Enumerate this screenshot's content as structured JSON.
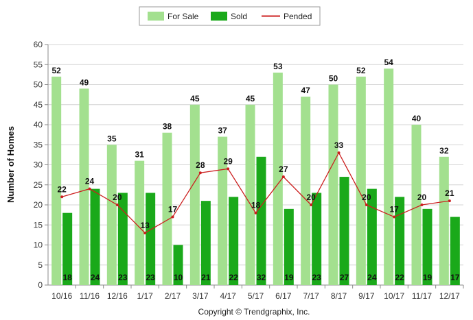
{
  "chart_data": {
    "type": "bar",
    "ylabel": "Number of Homes",
    "credit": "Copyright © Trendgraphix, Inc.",
    "ylim": [
      0,
      60
    ],
    "yticks": [
      0,
      5,
      10,
      15,
      20,
      25,
      30,
      35,
      40,
      45,
      50,
      55,
      60
    ],
    "grid": true,
    "legend_position": "top-center",
    "categories": [
      "10/16",
      "11/16",
      "12/16",
      "1/17",
      "2/17",
      "3/17",
      "4/17",
      "5/17",
      "6/17",
      "7/17",
      "8/17",
      "9/17",
      "10/17",
      "11/17",
      "12/17"
    ],
    "series": [
      {
        "name": "For Sale",
        "kind": "bar",
        "color": "#a3e08f",
        "values": [
          52,
          49,
          35,
          31,
          38,
          45,
          37,
          45,
          53,
          47,
          50,
          52,
          54,
          40,
          32
        ]
      },
      {
        "name": "Sold",
        "kind": "bar",
        "color": "#1aa91a",
        "values": [
          18,
          24,
          23,
          23,
          10,
          21,
          22,
          32,
          19,
          23,
          27,
          24,
          22,
          19,
          17
        ]
      },
      {
        "name": "Pended",
        "kind": "line",
        "color": "#cc1f1f",
        "values": [
          22,
          24,
          20,
          13,
          17,
          28,
          29,
          18,
          27,
          20,
          33,
          20,
          17,
          20,
          21
        ]
      }
    ]
  }
}
